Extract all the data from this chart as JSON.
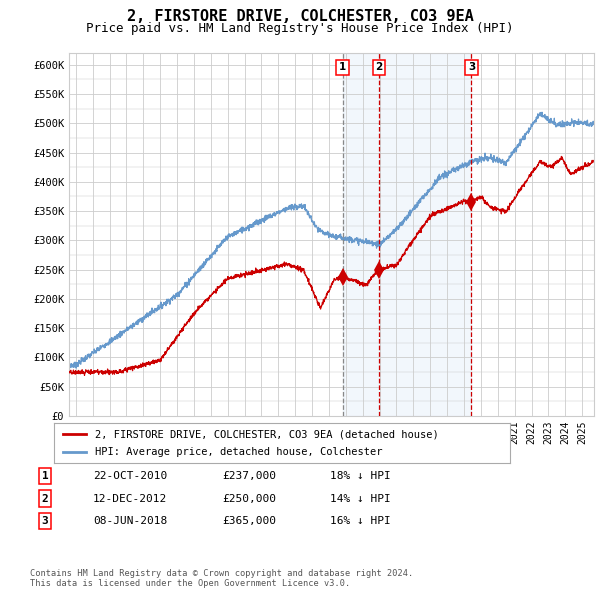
{
  "title": "2, FIRSTORE DRIVE, COLCHESTER, CO3 9EA",
  "subtitle": "Price paid vs. HM Land Registry's House Price Index (HPI)",
  "title_fontsize": 11,
  "subtitle_fontsize": 9,
  "ylim": [
    0,
    620000
  ],
  "ytick_labels": [
    "£0",
    "£50K",
    "£100K",
    "£150K",
    "£200K",
    "£250K",
    "£300K",
    "£350K",
    "£400K",
    "£450K",
    "£500K",
    "£550K",
    "£600K"
  ],
  "xlim_start": 1994.6,
  "xlim_end": 2025.7,
  "red_line_color": "#cc0000",
  "blue_line_color": "#6699cc",
  "grid_color": "#cccccc",
  "background_color": "#ffffff",
  "sale1_x": 2010.81,
  "sale1_y": 237000,
  "sale1_label": "1",
  "sale1_date": "22-OCT-2010",
  "sale1_price": "£237,000",
  "sale1_hpi": "18% ↓ HPI",
  "sale2_x": 2012.95,
  "sale2_y": 250000,
  "sale2_label": "2",
  "sale2_date": "12-DEC-2012",
  "sale2_price": "£250,000",
  "sale2_hpi": "14% ↓ HPI",
  "sale3_x": 2018.44,
  "sale3_y": 365000,
  "sale3_label": "3",
  "sale3_date": "08-JUN-2018",
  "sale3_price": "£365,000",
  "sale3_hpi": "16% ↓ HPI",
  "legend_label_red": "2, FIRSTORE DRIVE, COLCHESTER, CO3 9EA (detached house)",
  "legend_label_blue": "HPI: Average price, detached house, Colchester",
  "footer": "Contains HM Land Registry data © Crown copyright and database right 2024.\nThis data is licensed under the Open Government Licence v3.0."
}
